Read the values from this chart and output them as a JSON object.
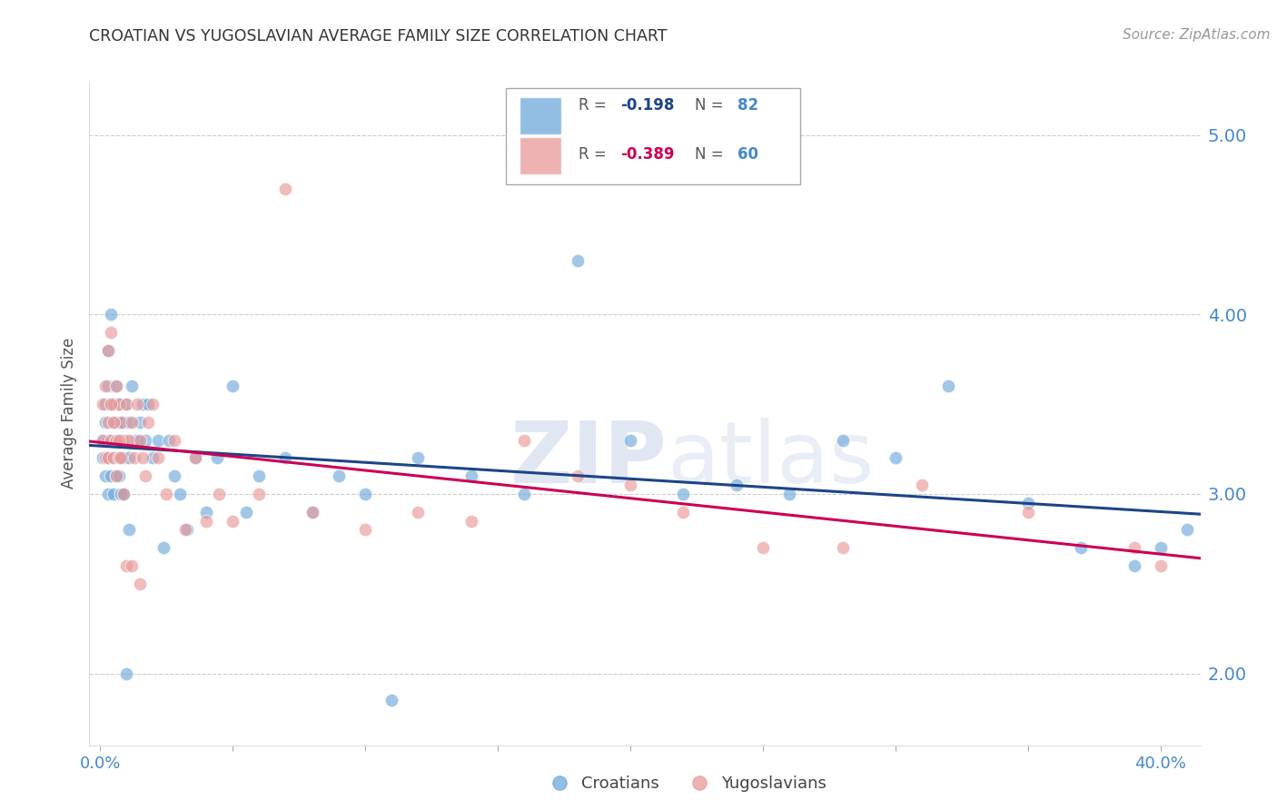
{
  "title": "CROATIAN VS YUGOSLAVIAN AVERAGE FAMILY SIZE CORRELATION CHART",
  "source": "Source: ZipAtlas.com",
  "ylabel": "Average Family Size",
  "yticks": [
    2.0,
    3.0,
    4.0,
    5.0
  ],
  "ylim": [
    1.6,
    5.3
  ],
  "xlim": [
    -0.004,
    0.415
  ],
  "croatian_color": "#6fa8dc",
  "yugoslavian_color": "#ea9999",
  "croatian_line_color": "#1c4587",
  "yugoslavian_line_color": "#cc0055",
  "background_color": "#ffffff",
  "grid_color": "#cccccc",
  "title_color": "#333333",
  "axis_color": "#4488cc",
  "watermark_color": "#d0d8e8",
  "croatian_x": [
    0.001,
    0.001,
    0.002,
    0.002,
    0.002,
    0.003,
    0.003,
    0.003,
    0.003,
    0.004,
    0.004,
    0.004,
    0.005,
    0.005,
    0.005,
    0.005,
    0.006,
    0.006,
    0.006,
    0.006,
    0.007,
    0.007,
    0.007,
    0.008,
    0.008,
    0.008,
    0.009,
    0.009,
    0.01,
    0.01,
    0.011,
    0.011,
    0.012,
    0.013,
    0.014,
    0.015,
    0.016,
    0.017,
    0.018,
    0.02,
    0.022,
    0.024,
    0.026,
    0.028,
    0.03,
    0.033,
    0.036,
    0.04,
    0.044,
    0.05,
    0.055,
    0.06,
    0.07,
    0.08,
    0.09,
    0.1,
    0.11,
    0.12,
    0.14,
    0.16,
    0.18,
    0.2,
    0.22,
    0.24,
    0.26,
    0.28,
    0.3,
    0.32,
    0.35,
    0.37,
    0.39,
    0.4,
    0.41,
    0.003,
    0.004,
    0.005,
    0.006,
    0.007,
    0.008,
    0.009,
    0.01,
    0.011
  ],
  "croatian_y": [
    3.3,
    3.2,
    3.4,
    3.5,
    3.1,
    3.6,
    3.3,
    3.2,
    3.0,
    3.5,
    3.3,
    3.1,
    3.5,
    3.4,
    3.2,
    3.0,
    3.6,
    3.4,
    3.3,
    3.1,
    3.5,
    3.3,
    3.1,
    3.4,
    3.3,
    3.0,
    3.4,
    3.2,
    3.5,
    3.3,
    3.4,
    3.2,
    3.6,
    3.3,
    3.3,
    3.4,
    3.5,
    3.3,
    3.5,
    3.2,
    3.3,
    2.7,
    3.3,
    3.1,
    3.0,
    2.8,
    3.2,
    2.9,
    3.2,
    3.6,
    2.9,
    3.1,
    3.2,
    2.9,
    3.1,
    3.0,
    1.85,
    3.2,
    3.1,
    3.0,
    4.3,
    3.3,
    3.0,
    3.05,
    3.0,
    3.3,
    3.2,
    3.6,
    2.95,
    2.7,
    2.6,
    2.7,
    2.8,
    3.8,
    4.0,
    3.5,
    3.5,
    3.5,
    3.0,
    3.0,
    2.0,
    2.8
  ],
  "yugoslavian_x": [
    0.001,
    0.001,
    0.002,
    0.002,
    0.003,
    0.003,
    0.004,
    0.004,
    0.005,
    0.005,
    0.006,
    0.006,
    0.007,
    0.007,
    0.008,
    0.009,
    0.01,
    0.011,
    0.012,
    0.013,
    0.014,
    0.015,
    0.016,
    0.017,
    0.018,
    0.02,
    0.022,
    0.025,
    0.028,
    0.032,
    0.036,
    0.04,
    0.045,
    0.05,
    0.06,
    0.07,
    0.08,
    0.1,
    0.12,
    0.14,
    0.16,
    0.18,
    0.2,
    0.22,
    0.25,
    0.28,
    0.31,
    0.35,
    0.39,
    0.4,
    0.003,
    0.004,
    0.005,
    0.006,
    0.007,
    0.008,
    0.009,
    0.01,
    0.012,
    0.015
  ],
  "yugoslavian_y": [
    3.3,
    3.5,
    3.6,
    3.2,
    3.8,
    3.2,
    3.9,
    3.3,
    3.5,
    3.2,
    3.6,
    3.1,
    3.5,
    3.2,
    3.4,
    3.3,
    3.5,
    3.3,
    3.4,
    3.2,
    3.5,
    3.3,
    3.2,
    3.1,
    3.4,
    3.5,
    3.2,
    3.0,
    3.3,
    2.8,
    3.2,
    2.85,
    3.0,
    2.85,
    3.0,
    4.7,
    2.9,
    2.8,
    2.9,
    2.85,
    3.3,
    3.1,
    3.05,
    2.9,
    2.7,
    2.7,
    3.05,
    2.9,
    2.7,
    2.6,
    3.4,
    3.5,
    3.4,
    3.3,
    3.3,
    3.2,
    3.0,
    2.6,
    2.6,
    2.5
  ]
}
